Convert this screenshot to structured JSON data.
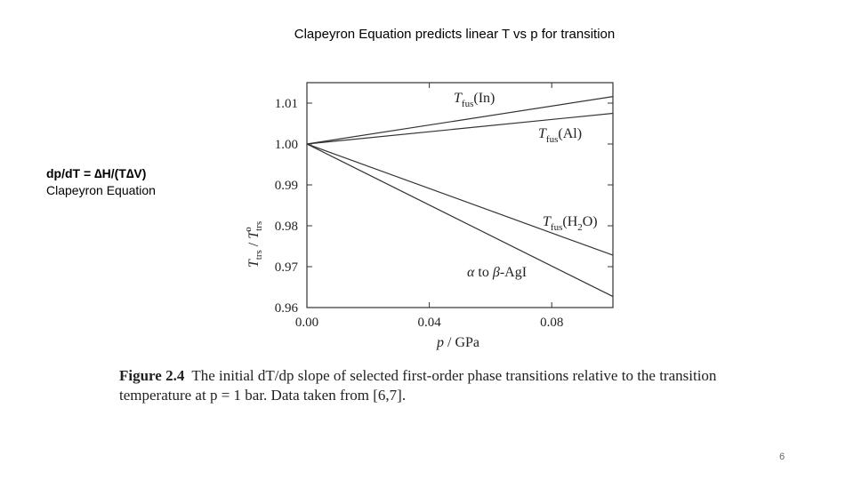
{
  "slide": {
    "title": "Clapeyron Equation predicts linear T vs p for transition",
    "side_formula": "dp/dT = ∆H/(T∆V)",
    "side_label": "Clapeyron Equation",
    "page_number": "6"
  },
  "caption": {
    "label": "Figure 2.4",
    "text": "The initial dT/dp slope of selected first-order phase transitions relative to the transition temperature at p = 1 bar. Data taken from [6,7]."
  },
  "chart_data": {
    "type": "line",
    "title": "",
    "xlabel": "p / GPa",
    "ylabel": "T_trs / T°_trs",
    "xlim": [
      0,
      0.1
    ],
    "ylim": [
      0.96,
      1.015
    ],
    "x_ticks": [
      0.0,
      0.04,
      0.08
    ],
    "x_tick_labels": [
      "0.00",
      "0.04",
      "0.08"
    ],
    "y_ticks": [
      0.96,
      0.97,
      0.98,
      0.99,
      1.0,
      1.01
    ],
    "y_tick_labels": [
      "0.96",
      "0.97",
      "0.98",
      "0.99",
      "1.00",
      "1.01"
    ],
    "grid": false,
    "series": [
      {
        "name": "Tfus(In)",
        "x": [
          0,
          0.1
        ],
        "y": [
          1.0,
          1.0116
        ]
      },
      {
        "name": "Tfus(Al)",
        "x": [
          0,
          0.1
        ],
        "y": [
          1.0,
          1.0075
        ]
      },
      {
        "name": "Tfus(H2O)",
        "x": [
          0,
          0.1
        ],
        "y": [
          1.0,
          0.9728
        ]
      },
      {
        "name": "α to β-AgI",
        "x": [
          0,
          0.1
        ],
        "y": [
          1.0,
          0.9627
        ]
      }
    ]
  }
}
